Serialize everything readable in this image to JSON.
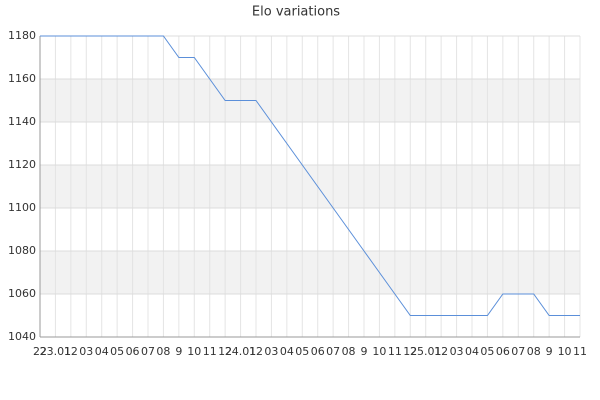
{
  "chart_data": {
    "type": "line",
    "title": "Elo variations",
    "categories": [
      "22",
      "23.01",
      "12",
      "03",
      "04",
      "05",
      "06",
      "07",
      "08",
      "9",
      "10",
      "11",
      "12",
      "24.01",
      "12",
      "03",
      "04",
      "05",
      "06",
      "07",
      "08",
      "9",
      "10",
      "11",
      "12",
      "25.01",
      "12",
      "03",
      "04",
      "05",
      "06",
      "07",
      "08",
      "9",
      "10",
      "11"
    ],
    "series": [
      {
        "name": "Elo",
        "color": "#5b8fd9",
        "values": [
          1180,
          1180,
          1180,
          1180,
          1180,
          1180,
          1180,
          1180,
          1180,
          1170,
          1170,
          1160,
          1150,
          1150,
          1150,
          1140,
          1130,
          1120,
          1110,
          1100,
          1090,
          1080,
          1070,
          1060,
          1050,
          1050,
          1050,
          1050,
          1050,
          1050,
          1060,
          1060,
          1060,
          1050,
          1050,
          1050
        ]
      }
    ],
    "ylim": [
      1040,
      1180
    ],
    "yticks": [
      1040,
      1060,
      1080,
      1100,
      1120,
      1140,
      1160,
      1180
    ],
    "grid": true
  }
}
